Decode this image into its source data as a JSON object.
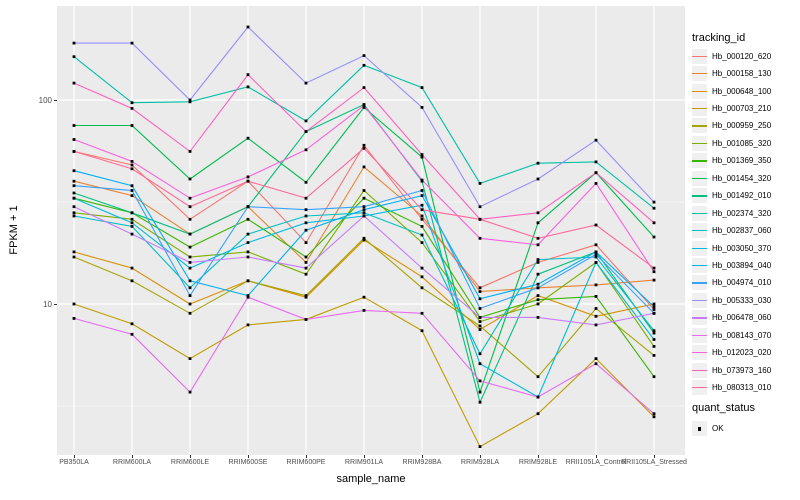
{
  "figure": {
    "background": "#FFFFFF",
    "panel_background": "#EBEBEB",
    "grid_color": "#FFFFFF",
    "point_color": "#000000",
    "axis_text_color": "#4D4D4D"
  },
  "y_axis": {
    "title": "FPKM + 1",
    "ticks": [
      "100",
      "10"
    ]
  },
  "x_axis": {
    "title": "sample_name"
  },
  "legend": {
    "tracking_title": "tracking_id",
    "quant_title": "quant_status",
    "quant_label": "OK"
  },
  "chart_data": {
    "type": "line",
    "title": "",
    "xlabel": "sample_name",
    "ylabel": "FPKM + 1",
    "y_scale": "log10",
    "ylim": [
      1.8,
      290
    ],
    "y_major_ticks": [
      10,
      100
    ],
    "y_minor_gridlines": [
      3.162,
      31.62
    ],
    "grid": true,
    "legend_position": "right",
    "point_shape": "filled-black-square",
    "point_legend": {
      "title": "quant_status",
      "entries": [
        "OK"
      ]
    },
    "categories": [
      "PB350LA",
      "RRIM600LA",
      "RRIM600LE",
      "RRIM600SE",
      "RRIM600PE",
      "RRIM901LA",
      "RRIM928BA",
      "RRIM928LA",
      "RRIM928LE",
      "RRII105LA_Control",
      "RRII105LA_Stressed"
    ],
    "series": [
      {
        "name": "Hb_000120_620",
        "color": "#F8766D",
        "values": [
          56,
          48,
          26,
          40,
          20,
          60,
          26,
          12,
          16,
          19.5,
          9.4
        ]
      },
      {
        "name": "Hb_000158_130",
        "color": "#EA8331",
        "values": [
          40,
          34,
          22,
          30,
          16,
          47,
          27,
          11.5,
          12,
          12.4,
          13.1
        ]
      },
      {
        "name": "Hb_000648_100",
        "color": "#D89000",
        "values": [
          18,
          15,
          10,
          13,
          10.8,
          20.6,
          13.6,
          7.5,
          11,
          8.7,
          10
        ]
      },
      {
        "name": "Hb_000703_210",
        "color": "#C09B00",
        "values": [
          10,
          8,
          5.4,
          7.9,
          8.4,
          10.8,
          7.4,
          2.0,
          2.9,
          5.4,
          2.8
        ]
      },
      {
        "name": "Hb_000959_250",
        "color": "#A3A500",
        "values": [
          17,
          13,
          9,
          13,
          11,
          21,
          12,
          7.8,
          4.4,
          9.5,
          5.6
        ]
      },
      {
        "name": "Hb_001085_320",
        "color": "#7CAE00",
        "values": [
          28,
          26,
          17,
          18,
          14,
          36,
          20,
          8.2,
          10,
          16,
          6.2
        ]
      },
      {
        "name": "Hb_001369_350",
        "color": "#39B600",
        "values": [
          33,
          28,
          19,
          26,
          17,
          33,
          24,
          8.6,
          10.5,
          10.9,
          4.4
        ]
      },
      {
        "name": "Hb_001454_320",
        "color": "#00BB4E",
        "values": [
          75,
          75,
          41,
          65,
          39.5,
          92,
          52.5,
          3.7,
          25,
          44,
          21.3
        ]
      },
      {
        "name": "Hb_001492_010",
        "color": "#00BF7D",
        "values": [
          35,
          28,
          22,
          30,
          70,
          95,
          40,
          3.3,
          14,
          18,
          7.2
        ]
      },
      {
        "name": "Hb_002374_320",
        "color": "#00C1A3",
        "values": [
          163,
          97,
          98,
          116,
          79,
          148,
          115,
          39,
          49,
          49.7,
          29.5
        ]
      },
      {
        "name": "Hb_002837_060",
        "color": "#00BFC4",
        "values": [
          27,
          24,
          12,
          22,
          27,
          28,
          21.8,
          5.7,
          16.5,
          17,
          7.4
        ]
      },
      {
        "name": "Hb_003050_370",
        "color": "#00BAE0",
        "values": [
          33,
          25,
          15,
          20,
          25,
          27,
          30.5,
          5.1,
          3.5,
          16,
          6.7
        ]
      },
      {
        "name": "Hb_003894_040",
        "color": "#00B0F6",
        "values": [
          45,
          38,
          13,
          11,
          23,
          29,
          34,
          10.6,
          12.5,
          18,
          9.7
        ]
      },
      {
        "name": "Hb_004974_010",
        "color": "#35A2FF",
        "values": [
          38,
          36,
          11,
          30,
          29,
          30,
          36,
          9.5,
          12,
          17.5,
          9
        ]
      },
      {
        "name": "Hb_005333_030",
        "color": "#9590FF",
        "values": [
          190,
          190,
          100,
          228,
          121,
          165,
          92,
          30,
          41,
          63.5,
          31.6
        ]
      },
      {
        "name": "Hb_006478_060",
        "color": "#C77CFF",
        "values": [
          30,
          22,
          16,
          17,
          15,
          27,
          15,
          8.6,
          8.6,
          7.9,
          9
        ]
      },
      {
        "name": "Hb_008143_070",
        "color": "#E76BF3",
        "values": [
          8.5,
          7.1,
          3.7,
          10.8,
          8.4,
          9.3,
          9.0,
          4.2,
          3.5,
          5.1,
          2.9
        ]
      },
      {
        "name": "Hb_012023_020",
        "color": "#FA62DB",
        "values": [
          64,
          50,
          33,
          42,
          57,
          94,
          40.5,
          21,
          19.5,
          39,
          14.4
        ]
      },
      {
        "name": "Hb_073973_160",
        "color": "#FF62BC",
        "values": [
          121,
          91,
          56,
          133,
          70,
          115,
          54,
          26,
          28,
          44,
          25
        ]
      },
      {
        "name": "Hb_080313_010",
        "color": "#FF6A98",
        "values": [
          56,
          46,
          30,
          40,
          33,
          58,
          29,
          26,
          21,
          24.4,
          15
        ]
      }
    ]
  }
}
